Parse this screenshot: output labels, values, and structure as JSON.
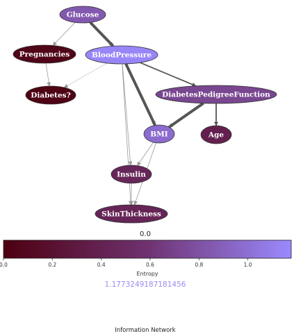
{
  "network": {
    "nodes": [
      {
        "id": "glucose",
        "label": "Glucose",
        "entropy": 0.85
      },
      {
        "id": "pregnancies",
        "label": "Pregnancies",
        "entropy": 0.05
      },
      {
        "id": "bloodpressure",
        "label": "BloodPressure",
        "entropy": 1.15
      },
      {
        "id": "diabetes",
        "label": "Diabetes?",
        "entropy": 0.02
      },
      {
        "id": "dpf",
        "label": "DiabetesPedigreeFunction",
        "entropy": 0.72
      },
      {
        "id": "bmi",
        "label": "BMI",
        "entropy": 0.97
      },
      {
        "id": "age",
        "label": "Age",
        "entropy": 0.38
      },
      {
        "id": "insulin",
        "label": "Insulin",
        "entropy": 0.45
      },
      {
        "id": "skinthickness",
        "label": "SkinThickness",
        "entropy": 0.43
      }
    ],
    "edges": [
      {
        "from": "glucose",
        "to": "pregnancies",
        "weight": "thin",
        "tone": "light"
      },
      {
        "from": "glucose",
        "to": "bloodpressure",
        "weight": "heavy",
        "tone": "dark"
      },
      {
        "from": "pregnancies",
        "to": "diabetes",
        "weight": "thin",
        "tone": "light"
      },
      {
        "from": "bloodpressure",
        "to": "diabetes",
        "weight": "thin",
        "tone": "faint"
      },
      {
        "from": "bloodpressure",
        "to": "dpf",
        "weight": "medium",
        "tone": "dark"
      },
      {
        "from": "bloodpressure",
        "to": "bmi",
        "weight": "heavy",
        "tone": "dark"
      },
      {
        "from": "bloodpressure",
        "to": "insulin",
        "weight": "thin",
        "tone": "light"
      },
      {
        "from": "bloodpressure",
        "to": "skinthickness",
        "weight": "thin",
        "tone": "light"
      },
      {
        "from": "dpf",
        "to": "bmi",
        "weight": "heavy",
        "tone": "dark"
      },
      {
        "from": "dpf",
        "to": "age",
        "weight": "medium",
        "tone": "dark"
      },
      {
        "from": "bmi",
        "to": "insulin",
        "weight": "thin",
        "tone": "light"
      },
      {
        "from": "bmi",
        "to": "skinthickness",
        "weight": "thin",
        "tone": "light"
      },
      {
        "from": "insulin",
        "to": "skinthickness",
        "weight": "thin",
        "tone": "light"
      }
    ]
  },
  "colorbar": {
    "min_value_text": "0.0",
    "max_value_text": "1.1773249187181456",
    "min": 0,
    "max": 1.1773249187181456,
    "ticks": [
      "0.0",
      "0.2",
      "0.4",
      "0.6",
      "0.8",
      "1.0"
    ],
    "axis_title": "Entropy",
    "colors": {
      "low": "#4d0010",
      "mid": "#6f3270",
      "high": "#9a8aff"
    }
  },
  "caption": "Information Network"
}
